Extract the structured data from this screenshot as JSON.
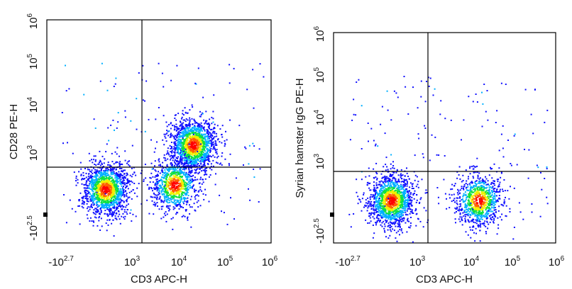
{
  "chart_data": [
    {
      "type": "scatter",
      "subtype": "flow-cytometry-density-dot-plot",
      "title": "",
      "xlabel": "CD3 APC-H",
      "ylabel": "CD28 PE-H",
      "x_scale": "biexponential",
      "y_scale": "biexponential",
      "x_ticks": [
        {
          "base": "-10",
          "exp": "2.7",
          "value": -501
        },
        {
          "base": "10",
          "exp": "3",
          "value": 1000
        },
        {
          "base": "10",
          "exp": "4",
          "value": 10000
        },
        {
          "base": "10",
          "exp": "5",
          "value": 100000
        },
        {
          "base": "10",
          "exp": "6",
          "value": 1000000
        }
      ],
      "y_ticks": [
        {
          "base": "-10",
          "exp": "2.5",
          "value": -316
        },
        {
          "base": "10",
          "exp": "3",
          "value": 1000
        },
        {
          "base": "10",
          "exp": "4",
          "value": 10000
        },
        {
          "base": "10",
          "exp": "5",
          "value": 100000
        },
        {
          "base": "10",
          "exp": "6",
          "value": 1000000
        }
      ],
      "quadrant_gate": {
        "x": 1800,
        "y": 500
      },
      "populations": [
        {
          "center_x": 150,
          "center_y": 100,
          "relative_density": "high"
        },
        {
          "center_x": 20000,
          "center_y": 1500,
          "relative_density": "high"
        },
        {
          "center_x": 8000,
          "center_y": 150,
          "relative_density": "medium"
        }
      ],
      "color_scale": [
        "#1010ff",
        "#00b0ff",
        "#10e040",
        "#f0f000",
        "#ff6000",
        "#ff0000"
      ],
      "grid": false,
      "legend": "none"
    },
    {
      "type": "scatter",
      "subtype": "flow-cytometry-density-dot-plot",
      "title": "",
      "xlabel": "CD3 APC-H",
      "ylabel": "Syrian hamster IgG PE-H",
      "x_scale": "biexponential",
      "y_scale": "biexponential",
      "x_ticks": [
        {
          "base": "-10",
          "exp": "2.7",
          "value": -501
        },
        {
          "base": "10",
          "exp": "3",
          "value": 1000
        },
        {
          "base": "10",
          "exp": "4",
          "value": 10000
        },
        {
          "base": "10",
          "exp": "5",
          "value": 100000
        },
        {
          "base": "10",
          "exp": "6",
          "value": 1000000
        }
      ],
      "y_ticks": [
        {
          "base": "-10",
          "exp": "2.5",
          "value": -316
        },
        {
          "base": "10",
          "exp": "3",
          "value": 1000
        },
        {
          "base": "10",
          "exp": "4",
          "value": 10000
        },
        {
          "base": "10",
          "exp": "5",
          "value": 100000
        },
        {
          "base": "10",
          "exp": "6",
          "value": 1000000
        }
      ],
      "quadrant_gate": {
        "x": 1800,
        "y": 600
      },
      "populations": [
        {
          "center_x": 150,
          "center_y": 50,
          "relative_density": "high"
        },
        {
          "center_x": 15000,
          "center_y": 50,
          "relative_density": "medium"
        }
      ],
      "color_scale": [
        "#1010ff",
        "#00b0ff",
        "#10e040",
        "#f0f000",
        "#ff6000",
        "#ff0000"
      ],
      "grid": false,
      "legend": "none"
    }
  ]
}
